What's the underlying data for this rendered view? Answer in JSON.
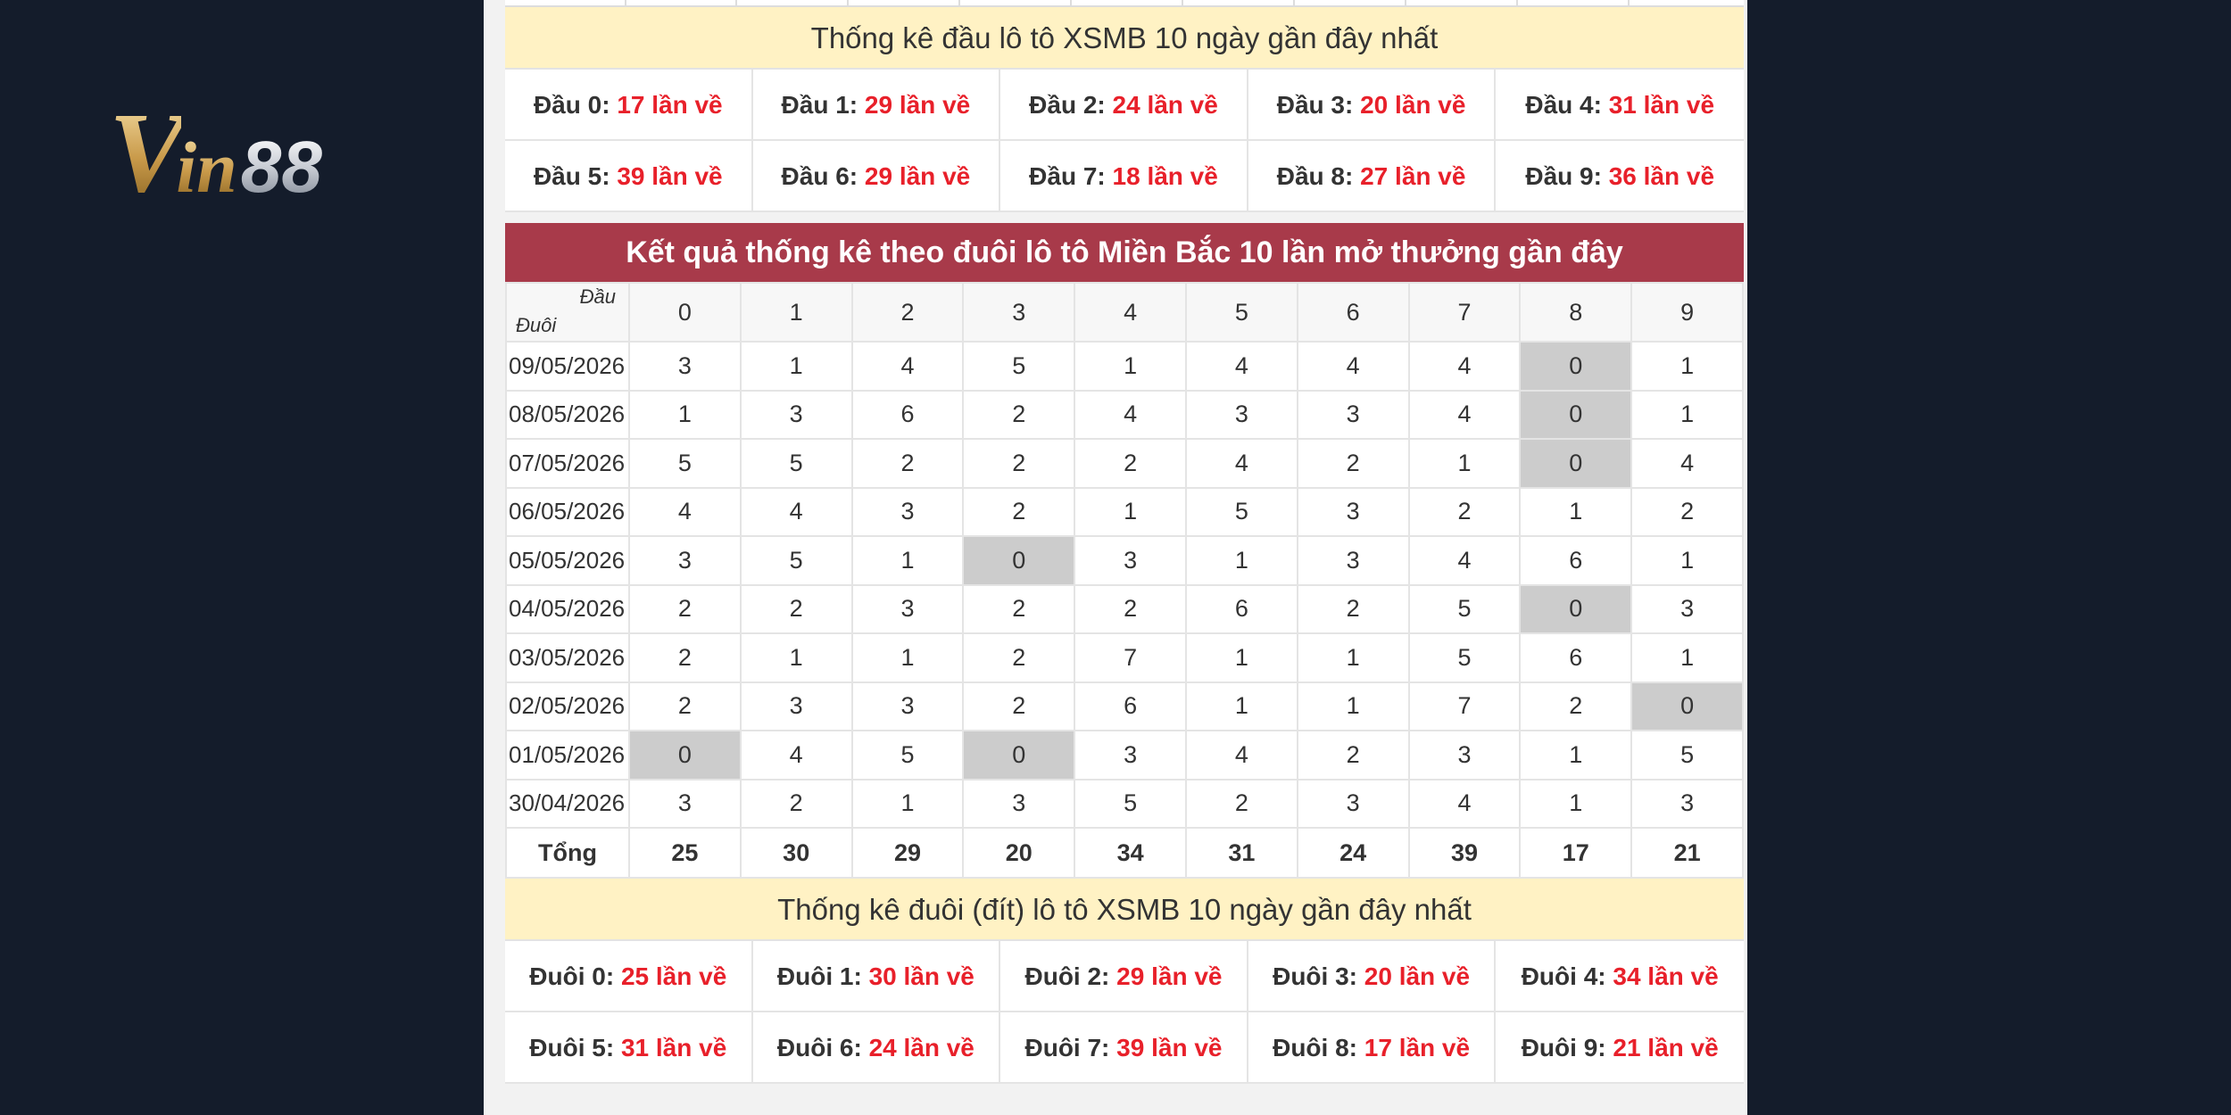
{
  "logo": {
    "part1": "V",
    "part2": "in",
    "part3": "88"
  },
  "dau_section": {
    "title": "Thống kê đầu lô tô XSMB 10 ngày gần đây nhất",
    "items": [
      {
        "label": "Đầu 0:",
        "value": "17 lần về"
      },
      {
        "label": "Đầu 1:",
        "value": "29 lần về"
      },
      {
        "label": "Đầu 2:",
        "value": "24 lần về"
      },
      {
        "label": "Đầu 3:",
        "value": "20 lần về"
      },
      {
        "label": "Đầu 4:",
        "value": "31 lần về"
      },
      {
        "label": "Đầu 5:",
        "value": "39 lần về"
      },
      {
        "label": "Đầu 6:",
        "value": "29 lần về"
      },
      {
        "label": "Đầu 7:",
        "value": "18 lần về"
      },
      {
        "label": "Đầu 8:",
        "value": "27 lần về"
      },
      {
        "label": "Đầu 9:",
        "value": "36 lần về"
      }
    ]
  },
  "table": {
    "title": "Kết quả thống kê theo đuôi lô tô Miền Bắc 10 lần mở thưởng gần đây",
    "corner_top": "Đầu",
    "corner_bottom": "Đuôi",
    "columns": [
      "0",
      "1",
      "2",
      "3",
      "4",
      "5",
      "6",
      "7",
      "8",
      "9"
    ],
    "rows": [
      {
        "date": "09/05/2026",
        "values": [
          "3",
          "1",
          "4",
          "5",
          "1",
          "4",
          "4",
          "4",
          "0",
          "1"
        ]
      },
      {
        "date": "08/05/2026",
        "values": [
          "1",
          "3",
          "6",
          "2",
          "4",
          "3",
          "3",
          "4",
          "0",
          "1"
        ]
      },
      {
        "date": "07/05/2026",
        "values": [
          "5",
          "5",
          "2",
          "2",
          "2",
          "4",
          "2",
          "1",
          "0",
          "4"
        ]
      },
      {
        "date": "06/05/2026",
        "values": [
          "4",
          "4",
          "3",
          "2",
          "1",
          "5",
          "3",
          "2",
          "1",
          "2"
        ]
      },
      {
        "date": "05/05/2026",
        "values": [
          "3",
          "5",
          "1",
          "0",
          "3",
          "1",
          "3",
          "4",
          "6",
          "1"
        ]
      },
      {
        "date": "04/05/2026",
        "values": [
          "2",
          "2",
          "3",
          "2",
          "2",
          "6",
          "2",
          "5",
          "0",
          "3"
        ]
      },
      {
        "date": "03/05/2026",
        "values": [
          "2",
          "1",
          "1",
          "2",
          "7",
          "1",
          "1",
          "5",
          "6",
          "1"
        ]
      },
      {
        "date": "02/05/2026",
        "values": [
          "2",
          "3",
          "3",
          "2",
          "6",
          "1",
          "1",
          "7",
          "2",
          "0"
        ]
      },
      {
        "date": "01/05/2026",
        "values": [
          "0",
          "4",
          "5",
          "0",
          "3",
          "4",
          "2",
          "3",
          "1",
          "5"
        ]
      },
      {
        "date": "30/04/2026",
        "values": [
          "3",
          "2",
          "1",
          "3",
          "5",
          "2",
          "3",
          "4",
          "1",
          "3"
        ]
      }
    ],
    "total_label": "Tổng",
    "totals": [
      "25",
      "30",
      "29",
      "20",
      "34",
      "31",
      "24",
      "39",
      "17",
      "21"
    ]
  },
  "duoi_section": {
    "title": "Thống kê đuôi (đít) lô tô XSMB 10 ngày gần đây nhất",
    "items": [
      {
        "label": "Đuôi 0:",
        "value": "25 lần về"
      },
      {
        "label": "Đuôi 1:",
        "value": "30 lần về"
      },
      {
        "label": "Đuôi 2:",
        "value": "29 lần về"
      },
      {
        "label": "Đuôi 3:",
        "value": "20 lần về"
      },
      {
        "label": "Đuôi 4:",
        "value": "34 lần về"
      },
      {
        "label": "Đuôi 5:",
        "value": "31 lần về"
      },
      {
        "label": "Đuôi 6:",
        "value": "24 lần về"
      },
      {
        "label": "Đuôi 7:",
        "value": "39 lần về"
      },
      {
        "label": "Đuôi 8:",
        "value": "17 lần về"
      },
      {
        "label": "Đuôi 9:",
        "value": "21 lần về"
      }
    ]
  },
  "colors": {
    "background": "#141c2b",
    "header_red": "#a83a4a",
    "count_red": "#e8202a",
    "zero_cell": "#cccccc",
    "title_yellow": "#fff2c4"
  }
}
